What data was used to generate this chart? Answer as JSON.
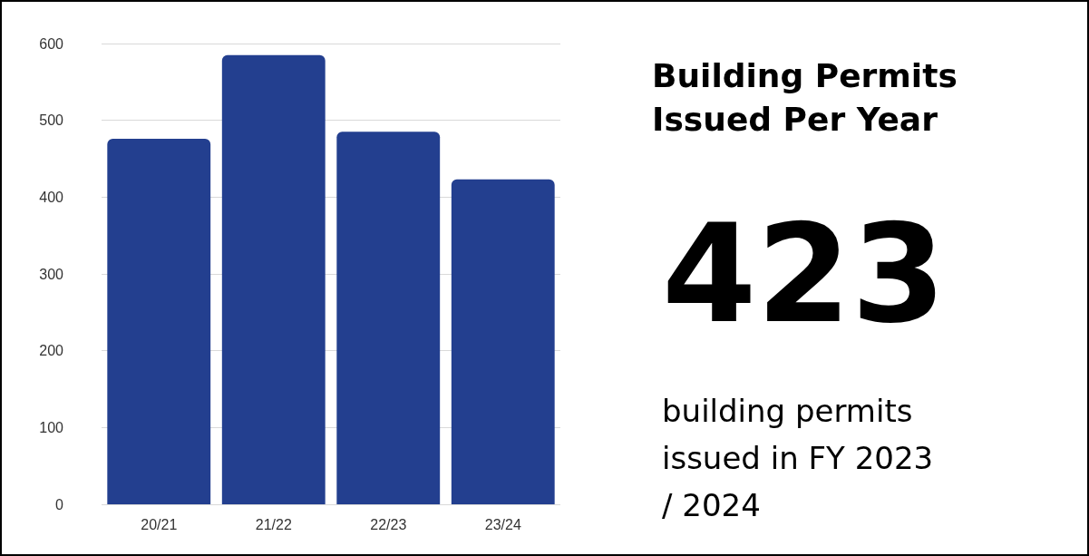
{
  "chart_data": {
    "type": "bar",
    "title": "Building Permits Issued Per Year",
    "categories": [
      "20/21",
      "21/22",
      "22/23",
      "23/24"
    ],
    "values": [
      476,
      585,
      485,
      423
    ],
    "color": "#233f8f",
    "ylim": [
      0,
      600
    ],
    "yticks": [
      0,
      100,
      200,
      300,
      400,
      500,
      600
    ],
    "grid": "y",
    "annotations": [
      "423",
      "building permits issued in FY 2023/ 2024"
    ]
  }
}
